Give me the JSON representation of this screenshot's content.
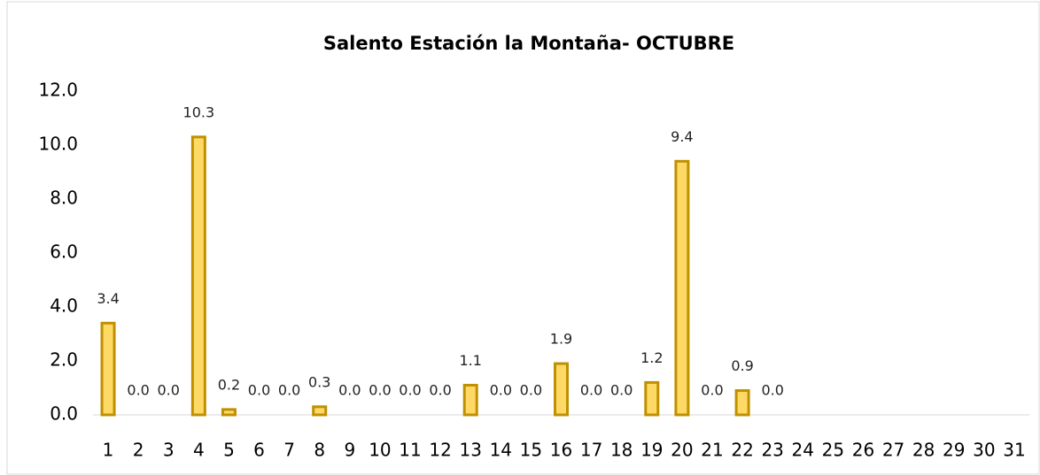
{
  "chart_data": {
    "type": "bar",
    "title": "Salento Estación la Montaña- OCTUBRE",
    "categories": [
      "1",
      "2",
      "3",
      "4",
      "5",
      "6",
      "7",
      "8",
      "9",
      "10",
      "11",
      "12",
      "13",
      "14",
      "15",
      "16",
      "17",
      "18",
      "19",
      "20",
      "21",
      "22",
      "23",
      "24",
      "25",
      "26",
      "27",
      "28",
      "29",
      "30",
      "31"
    ],
    "values": [
      3.4,
      0,
      0,
      10.3,
      0.2,
      0,
      0,
      0.3,
      0,
      0,
      0,
      0,
      1.1,
      0,
      0,
      1.9,
      0,
      0,
      1.2,
      9.4,
      0,
      0.9,
      0,
      null,
      null,
      null,
      null,
      null,
      null,
      null,
      null
    ],
    "value_labels": [
      "3.4",
      "0.0",
      "0.0",
      "10.3",
      "0.2",
      "0.0",
      "0.0",
      "0.3",
      "0.0",
      "0.0",
      "0.0",
      "0.0",
      "1.1",
      "0.0",
      "0.0",
      "1.9",
      "0.0",
      "0.0",
      "1.2",
      "9.4",
      "0.0",
      "0.9",
      "0.0",
      null,
      null,
      null,
      null,
      null,
      null,
      null,
      null
    ],
    "color": "#ffd966",
    "edge_color": "#bf9000",
    "ylim": [
      0,
      12
    ],
    "yticks": [
      {
        "value": 0,
        "label": "0.0"
      },
      {
        "value": 2,
        "label": "2.0"
      },
      {
        "value": 4,
        "label": "4.0"
      },
      {
        "value": 6,
        "label": "6.0"
      },
      {
        "value": 8,
        "label": "8.0"
      },
      {
        "value": 10,
        "label": "10.0"
      },
      {
        "value": 12,
        "label": "12.0"
      }
    ],
    "grid": false
  }
}
